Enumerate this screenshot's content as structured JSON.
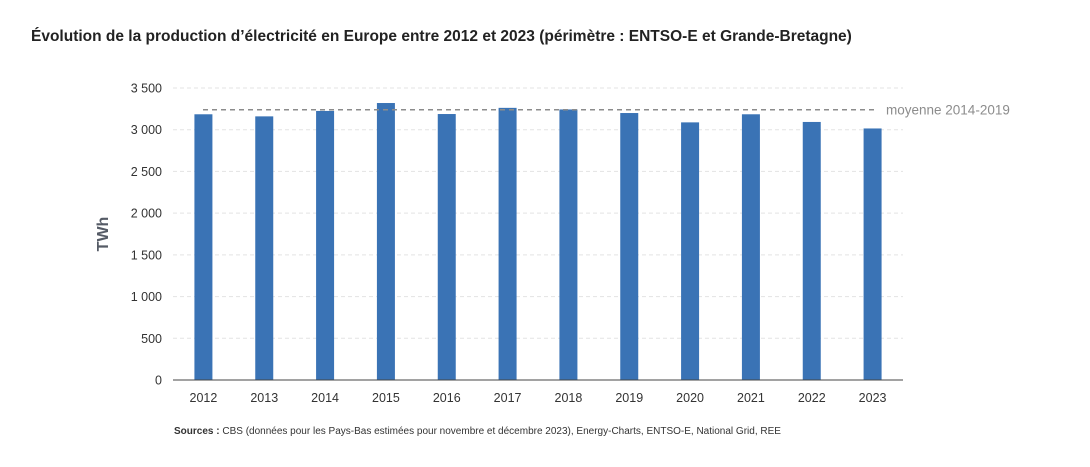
{
  "title": "Évolution de la production d’électricité en Europe entre 2012 et 2023 (périmètre : ENTSO-E et Grande-Bretagne)",
  "sources": {
    "label": "Sources :",
    "text": " CBS (données pour les Pays-Bas estimées pour novembre et décembre 2023), Energy-Charts, ENTSO-E, National Grid, REE"
  },
  "chart_data": {
    "type": "bar",
    "categories": [
      "2012",
      "2013",
      "2014",
      "2015",
      "2016",
      "2017",
      "2018",
      "2019",
      "2020",
      "2021",
      "2022",
      "2023"
    ],
    "values": [
      3185,
      3160,
      3225,
      3320,
      3188,
      3262,
      3243,
      3200,
      3088,
      3185,
      3093,
      3015
    ],
    "ylabel": "TWh",
    "xlabel": "",
    "ylim": [
      0,
      3500
    ],
    "yticks": [
      0,
      500,
      1000,
      1500,
      2000,
      2500,
      3000,
      3500
    ],
    "ytick_labels": [
      "0",
      "500",
      "1 000",
      "1 500",
      "2 000",
      "2 500",
      "3 000",
      "3 500"
    ],
    "grid": true,
    "bar_color": "#3a73b5",
    "reference_line": {
      "label": "moyenne 2014-2019",
      "value": 3240,
      "color": "#8c8c8c"
    }
  }
}
